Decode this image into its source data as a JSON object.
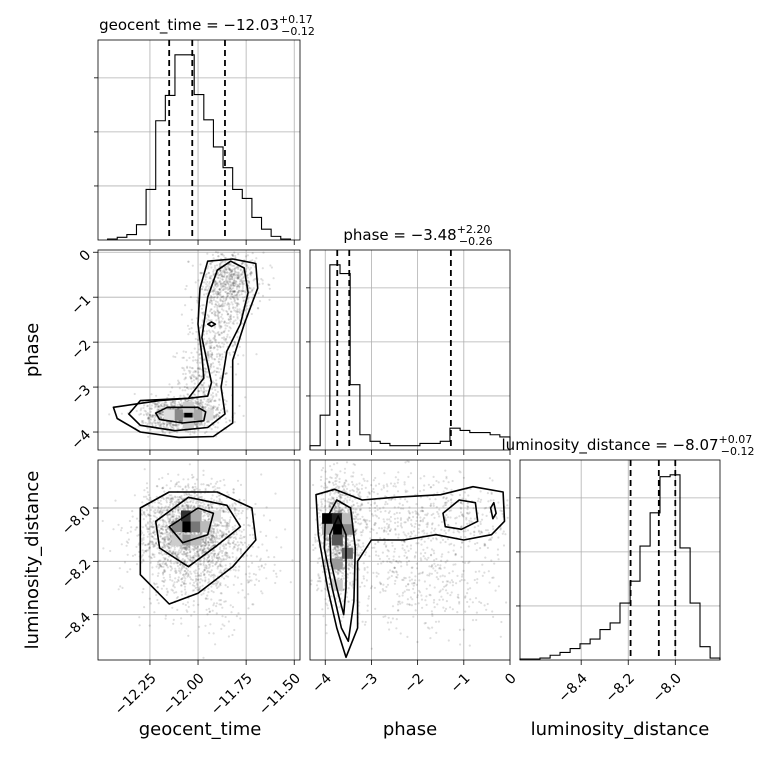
{
  "chart_data": [
    {
      "type": "histogram",
      "panel": "geocent_time",
      "title": {
        "base": "geocent_time = −12.03",
        "sup": "+0.17",
        "sub": "−0.12"
      },
      "quantiles": [
        -12.15,
        -12.03,
        -11.86
      ],
      "xlim": [
        -12.52,
        -11.47
      ],
      "grid": true,
      "bin_edges": [
        -12.47,
        -12.42,
        -12.37,
        -12.32,
        -12.27,
        -12.22,
        -12.17,
        -12.12,
        -12.07,
        -12.02,
        -11.97,
        -11.92,
        -11.87,
        -11.82,
        -11.77,
        -11.72,
        -11.67,
        -11.62,
        -11.57,
        -11.52
      ],
      "counts": [
        1,
        3,
        6,
        17,
        56,
        132,
        160,
        205,
        205,
        161,
        133,
        103,
        80,
        56,
        46,
        25,
        12,
        4,
        1
      ]
    },
    {
      "type": "histogram",
      "panel": "phase",
      "title": {
        "base": "phase = −3.48",
        "sup": "+2.20",
        "sub": "−0.26"
      },
      "quantiles": [
        -3.74,
        -3.48,
        -1.28
      ],
      "xlim": [
        -4.33,
        0.0
      ],
      "grid": true,
      "bin_edges": [
        -4.33,
        -4.11,
        -3.9,
        -3.68,
        -3.46,
        -3.25,
        -3.03,
        -2.81,
        -2.6,
        -2.38,
        -2.16,
        -1.95,
        -1.73,
        -1.51,
        -1.3,
        -1.08,
        -0.87,
        -0.65,
        -0.43,
        -0.22,
        0.0
      ],
      "counts": [
        2,
        16,
        85,
        81,
        30,
        7,
        4,
        3,
        2,
        2,
        2,
        3,
        3,
        4,
        10,
        9,
        8,
        8,
        7,
        6
      ]
    },
    {
      "type": "histogram",
      "panel": "luminosity_distance",
      "title": {
        "base": "luminosity_distance = −8.07",
        "sup": "+0.07",
        "sub": "−0.12"
      },
      "quantiles": [
        -8.19,
        -8.07,
        -8.0
      ],
      "xlim": [
        -8.66,
        -7.81
      ],
      "grid": true,
      "bin_edges": [
        -8.66,
        -8.617,
        -8.575,
        -8.532,
        -8.49,
        -8.447,
        -8.405,
        -8.362,
        -8.32,
        -8.277,
        -8.235,
        -8.192,
        -8.15,
        -8.107,
        -8.065,
        -8.022,
        -7.98,
        -7.937,
        -7.895,
        -7.852,
        -7.81
      ],
      "counts": [
        1,
        1,
        2,
        5,
        8,
        12,
        17,
        22,
        32,
        39,
        60,
        83,
        120,
        155,
        193,
        195,
        118,
        60,
        14,
        2
      ]
    },
    {
      "type": "scatter-density",
      "panel": "phase_vs_geocent_time",
      "x": "geocent_time",
      "y": "phase",
      "xlim": [
        -12.52,
        -11.47
      ],
      "ylim": [
        -4.4,
        0.05
      ],
      "grid": true
    },
    {
      "type": "scatter-density",
      "panel": "luminosity_distance_vs_geocent_time",
      "x": "geocent_time",
      "y": "luminosity_distance",
      "xlim": [
        -12.52,
        -11.47
      ],
      "ylim": [
        -8.57,
        -7.82
      ],
      "grid": true
    },
    {
      "type": "scatter-density",
      "panel": "luminosity_distance_vs_phase",
      "x": "phase",
      "y": "luminosity_distance",
      "xlim": [
        -4.33,
        0.0
      ],
      "ylim": [
        -8.57,
        -7.82
      ],
      "grid": true
    }
  ],
  "axes": {
    "geocent_time": {
      "label": "geocent_time",
      "ticks": [
        -12.25,
        -12.0,
        -11.75,
        -11.5
      ],
      "tick_labels": [
        "−12.25",
        "−12.00",
        "−11.75",
        "−11.50"
      ]
    },
    "phase": {
      "label": "phase",
      "ticks": [
        -4,
        -3,
        -2,
        -1,
        0
      ],
      "tick_labels": [
        "−4",
        "−3",
        "−2",
        "−1",
        "0"
      ]
    },
    "phase_y": {
      "ticks": [
        0,
        -1,
        -2,
        -3,
        -4
      ],
      "tick_labels": [
        "0",
        "−1",
        "−2",
        "−3",
        "−4"
      ]
    },
    "luminosity_distance": {
      "label": "luminosity_distance",
      "ticks": [
        -8.4,
        -8.2,
        -8.0
      ],
      "tick_labels": [
        "−8.4",
        "−8.2",
        "−8.0"
      ]
    },
    "luminosity_distance_y": {
      "ticks": [
        -8.0,
        -8.2,
        -8.4
      ],
      "tick_labels": [
        "−8.0",
        "−8.2",
        "−8.4"
      ]
    }
  }
}
